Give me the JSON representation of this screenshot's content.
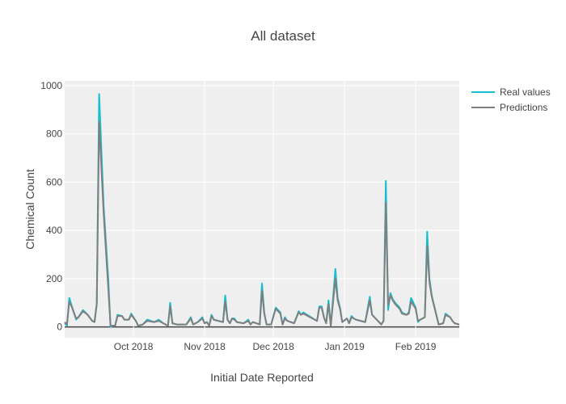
{
  "chart_data": {
    "type": "line",
    "title": "All dataset",
    "xlabel": "Initial Date Reported",
    "ylabel": "Chemical Count",
    "x_start": "2018-09-01",
    "x_end": "2019-02-20",
    "ylim": [
      -45,
      1020
    ],
    "x_ticks": [
      {
        "date": "2018-10-01",
        "label": "Oct 2018"
      },
      {
        "date": "2018-11-01",
        "label": "Nov 2018"
      },
      {
        "date": "2018-12-01",
        "label": "Dec 2018"
      },
      {
        "date": "2019-01-01",
        "label": "Jan 2019"
      },
      {
        "date": "2019-02-01",
        "label": "Feb 2019"
      }
    ],
    "y_ticks": [
      0,
      200,
      400,
      600,
      800,
      1000
    ],
    "grid": true,
    "legend_position": "top-right",
    "series": [
      {
        "name": "Real values",
        "color": "#17becf",
        "points": [
          [
            "2018-09-01",
            15
          ],
          [
            "2018-09-02",
            5
          ],
          [
            "2018-09-03",
            120
          ],
          [
            "2018-09-04",
            90
          ],
          [
            "2018-09-05",
            60
          ],
          [
            "2018-09-06",
            30
          ],
          [
            "2018-09-07",
            40
          ],
          [
            "2018-09-09",
            70
          ],
          [
            "2018-09-11",
            50
          ],
          [
            "2018-09-13",
            25
          ],
          [
            "2018-09-14",
            20
          ],
          [
            "2018-09-15",
            100
          ],
          [
            "2018-09-16",
            965
          ],
          [
            "2018-09-18",
            500
          ],
          [
            "2018-09-20",
            200
          ],
          [
            "2018-09-21",
            0
          ],
          [
            "2018-09-22",
            5
          ],
          [
            "2018-09-23",
            5
          ],
          [
            "2018-09-24",
            50
          ],
          [
            "2018-09-26",
            45
          ],
          [
            "2018-09-27",
            30
          ],
          [
            "2018-09-29",
            30
          ],
          [
            "2018-09-30",
            55
          ],
          [
            "2018-10-02",
            25
          ],
          [
            "2018-10-03",
            5
          ],
          [
            "2018-10-05",
            10
          ],
          [
            "2018-10-07",
            30
          ],
          [
            "2018-10-10",
            20
          ],
          [
            "2018-10-12",
            30
          ],
          [
            "2018-10-14",
            15
          ],
          [
            "2018-10-16",
            5
          ],
          [
            "2018-10-17",
            100
          ],
          [
            "2018-10-18",
            15
          ],
          [
            "2018-10-20",
            10
          ],
          [
            "2018-10-22",
            10
          ],
          [
            "2018-10-24",
            10
          ],
          [
            "2018-10-26",
            40
          ],
          [
            "2018-10-27",
            10
          ],
          [
            "2018-10-29",
            20
          ],
          [
            "2018-10-31",
            40
          ],
          [
            "2018-11-01",
            15
          ],
          [
            "2018-11-02",
            20
          ],
          [
            "2018-11-03",
            5
          ],
          [
            "2018-11-04",
            50
          ],
          [
            "2018-11-05",
            30
          ],
          [
            "2018-11-09",
            20
          ],
          [
            "2018-11-10",
            130
          ],
          [
            "2018-11-11",
            30
          ],
          [
            "2018-11-12",
            15
          ],
          [
            "2018-11-13",
            35
          ],
          [
            "2018-11-14",
            35
          ],
          [
            "2018-11-15",
            20
          ],
          [
            "2018-11-18",
            15
          ],
          [
            "2018-11-20",
            30
          ],
          [
            "2018-11-21",
            10
          ],
          [
            "2018-11-22",
            20
          ],
          [
            "2018-11-25",
            10
          ],
          [
            "2018-11-26",
            180
          ],
          [
            "2018-11-27",
            60
          ],
          [
            "2018-11-28",
            10
          ],
          [
            "2018-11-30",
            10
          ],
          [
            "2018-12-02",
            80
          ],
          [
            "2018-12-04",
            60
          ],
          [
            "2018-12-05",
            10
          ],
          [
            "2018-12-06",
            40
          ],
          [
            "2018-12-07",
            25
          ],
          [
            "2018-12-10",
            15
          ],
          [
            "2018-12-12",
            65
          ],
          [
            "2018-12-13",
            50
          ],
          [
            "2018-12-14",
            60
          ],
          [
            "2018-12-19",
            30
          ],
          [
            "2018-12-20",
            25
          ],
          [
            "2018-12-21",
            85
          ],
          [
            "2018-12-22",
            85
          ],
          [
            "2018-12-23",
            40
          ],
          [
            "2018-12-24",
            15
          ],
          [
            "2018-12-25",
            110
          ],
          [
            "2018-12-26",
            5
          ],
          [
            "2018-12-28",
            240
          ],
          [
            "2018-12-29",
            120
          ],
          [
            "2018-12-30",
            80
          ],
          [
            "2018-12-31",
            20
          ],
          [
            "2019-01-02",
            35
          ],
          [
            "2019-01-03",
            15
          ],
          [
            "2019-01-04",
            45
          ],
          [
            "2019-01-05",
            35
          ],
          [
            "2019-01-06",
            30
          ],
          [
            "2019-01-10",
            20
          ],
          [
            "2019-01-12",
            125
          ],
          [
            "2019-01-13",
            50
          ],
          [
            "2019-01-14",
            40
          ],
          [
            "2019-01-16",
            20
          ],
          [
            "2019-01-17",
            10
          ],
          [
            "2019-01-18",
            25
          ],
          [
            "2019-01-19",
            605
          ],
          [
            "2019-01-20",
            70
          ],
          [
            "2019-01-21",
            140
          ],
          [
            "2019-01-22",
            115
          ],
          [
            "2019-01-23",
            100
          ],
          [
            "2019-01-25",
            80
          ],
          [
            "2019-01-26",
            60
          ],
          [
            "2019-01-28",
            50
          ],
          [
            "2019-01-29",
            60
          ],
          [
            "2019-01-30",
            120
          ],
          [
            "2019-02-01",
            80
          ],
          [
            "2019-02-02",
            20
          ],
          [
            "2019-02-03",
            30
          ],
          [
            "2019-02-05",
            40
          ],
          [
            "2019-02-06",
            395
          ],
          [
            "2019-02-07",
            200
          ],
          [
            "2019-02-08",
            130
          ],
          [
            "2019-02-11",
            10
          ],
          [
            "2019-02-13",
            15
          ],
          [
            "2019-02-14",
            55
          ],
          [
            "2019-02-16",
            40
          ],
          [
            "2019-02-17",
            25
          ],
          [
            "2019-02-18",
            15
          ],
          [
            "2019-02-20",
            10
          ]
        ]
      },
      {
        "name": "Predictions",
        "color": "#7f7f7f",
        "points": [
          [
            "2018-09-01",
            20
          ],
          [
            "2018-09-02",
            10
          ],
          [
            "2018-09-03",
            105
          ],
          [
            "2018-09-04",
            85
          ],
          [
            "2018-09-05",
            60
          ],
          [
            "2018-09-06",
            35
          ],
          [
            "2018-09-07",
            40
          ],
          [
            "2018-09-09",
            65
          ],
          [
            "2018-09-11",
            50
          ],
          [
            "2018-09-13",
            25
          ],
          [
            "2018-09-14",
            20
          ],
          [
            "2018-09-15",
            95
          ],
          [
            "2018-09-16",
            850
          ],
          [
            "2018-09-18",
            470
          ],
          [
            "2018-09-20",
            160
          ],
          [
            "2018-09-21",
            5
          ],
          [
            "2018-09-22",
            5
          ],
          [
            "2018-09-23",
            5
          ],
          [
            "2018-09-24",
            45
          ],
          [
            "2018-09-26",
            45
          ],
          [
            "2018-09-27",
            30
          ],
          [
            "2018-09-29",
            30
          ],
          [
            "2018-09-30",
            50
          ],
          [
            "2018-10-02",
            25
          ],
          [
            "2018-10-03",
            5
          ],
          [
            "2018-10-05",
            10
          ],
          [
            "2018-10-07",
            25
          ],
          [
            "2018-10-10",
            20
          ],
          [
            "2018-10-12",
            25
          ],
          [
            "2018-10-14",
            15
          ],
          [
            "2018-10-16",
            5
          ],
          [
            "2018-10-17",
            85
          ],
          [
            "2018-10-18",
            15
          ],
          [
            "2018-10-20",
            10
          ],
          [
            "2018-10-22",
            10
          ],
          [
            "2018-10-24",
            10
          ],
          [
            "2018-10-26",
            35
          ],
          [
            "2018-10-27",
            10
          ],
          [
            "2018-10-29",
            20
          ],
          [
            "2018-10-31",
            35
          ],
          [
            "2018-11-01",
            15
          ],
          [
            "2018-11-02",
            20
          ],
          [
            "2018-11-03",
            5
          ],
          [
            "2018-11-04",
            45
          ],
          [
            "2018-11-05",
            30
          ],
          [
            "2018-11-09",
            20
          ],
          [
            "2018-11-10",
            105
          ],
          [
            "2018-11-11",
            30
          ],
          [
            "2018-11-12",
            15
          ],
          [
            "2018-11-13",
            35
          ],
          [
            "2018-11-14",
            30
          ],
          [
            "2018-11-15",
            20
          ],
          [
            "2018-11-18",
            15
          ],
          [
            "2018-11-20",
            25
          ],
          [
            "2018-11-21",
            10
          ],
          [
            "2018-11-22",
            20
          ],
          [
            "2018-11-25",
            10
          ],
          [
            "2018-11-26",
            150
          ],
          [
            "2018-11-27",
            55
          ],
          [
            "2018-11-28",
            10
          ],
          [
            "2018-11-30",
            10
          ],
          [
            "2018-12-02",
            75
          ],
          [
            "2018-12-04",
            55
          ],
          [
            "2018-12-05",
            10
          ],
          [
            "2018-12-06",
            35
          ],
          [
            "2018-12-07",
            25
          ],
          [
            "2018-12-10",
            15
          ],
          [
            "2018-12-12",
            60
          ],
          [
            "2018-12-13",
            50
          ],
          [
            "2018-12-14",
            55
          ],
          [
            "2018-12-19",
            30
          ],
          [
            "2018-12-20",
            25
          ],
          [
            "2018-12-21",
            80
          ],
          [
            "2018-12-22",
            80
          ],
          [
            "2018-12-23",
            40
          ],
          [
            "2018-12-24",
            15
          ],
          [
            "2018-12-25",
            95
          ],
          [
            "2018-12-26",
            5
          ],
          [
            "2018-12-28",
            200
          ],
          [
            "2018-12-29",
            110
          ],
          [
            "2018-12-30",
            75
          ],
          [
            "2018-12-31",
            20
          ],
          [
            "2019-01-02",
            35
          ],
          [
            "2019-01-03",
            15
          ],
          [
            "2019-01-04",
            40
          ],
          [
            "2019-01-05",
            35
          ],
          [
            "2019-01-06",
            30
          ],
          [
            "2019-01-10",
            20
          ],
          [
            "2019-01-12",
            110
          ],
          [
            "2019-01-13",
            50
          ],
          [
            "2019-01-14",
            40
          ],
          [
            "2019-01-16",
            20
          ],
          [
            "2019-01-17",
            10
          ],
          [
            "2019-01-18",
            25
          ],
          [
            "2019-01-19",
            515
          ],
          [
            "2019-01-20",
            90
          ],
          [
            "2019-01-21",
            130
          ],
          [
            "2019-01-22",
            110
          ],
          [
            "2019-01-23",
            95
          ],
          [
            "2019-01-25",
            75
          ],
          [
            "2019-01-26",
            55
          ],
          [
            "2019-01-28",
            50
          ],
          [
            "2019-01-29",
            55
          ],
          [
            "2019-01-30",
            105
          ],
          [
            "2019-02-01",
            75
          ],
          [
            "2019-02-02",
            25
          ],
          [
            "2019-02-03",
            30
          ],
          [
            "2019-02-05",
            40
          ],
          [
            "2019-02-06",
            335
          ],
          [
            "2019-02-07",
            185
          ],
          [
            "2019-02-08",
            125
          ],
          [
            "2019-02-11",
            10
          ],
          [
            "2019-02-13",
            15
          ],
          [
            "2019-02-14",
            50
          ],
          [
            "2019-02-16",
            40
          ],
          [
            "2019-02-17",
            25
          ],
          [
            "2019-02-18",
            15
          ],
          [
            "2019-02-20",
            10
          ]
        ]
      }
    ]
  }
}
